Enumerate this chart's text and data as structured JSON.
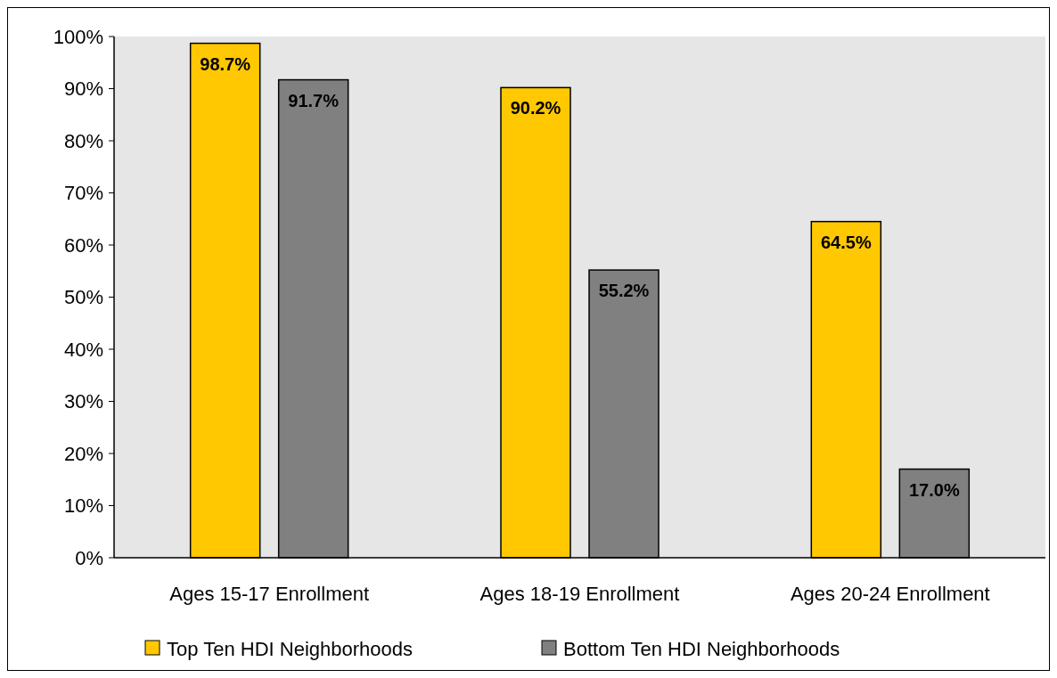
{
  "chart_data": {
    "type": "bar",
    "categories": [
      "Ages 15-17 Enrollment",
      "Ages 18-19 Enrollment",
      "Ages 20-24 Enrollment"
    ],
    "series": [
      {
        "name": "Top Ten HDI Neighborhoods",
        "color": "#ffc800",
        "values": [
          98.7,
          90.2,
          64.5
        ],
        "value_labels": [
          "98.7%",
          "90.2%",
          "64.5%"
        ]
      },
      {
        "name": "Bottom Ten HDI Neighborhoods",
        "color": "#808080",
        "values": [
          91.7,
          55.2,
          17.0
        ],
        "value_labels": [
          "91.7%",
          "55.2%",
          "17.0%"
        ]
      }
    ],
    "ylim": [
      0,
      100
    ],
    "yticks": [
      {
        "value": 0,
        "label": "0%"
      },
      {
        "value": 10,
        "label": "10%"
      },
      {
        "value": 20,
        "label": "20%"
      },
      {
        "value": 30,
        "label": "30%"
      },
      {
        "value": 40,
        "label": "40%"
      },
      {
        "value": 50,
        "label": "50%"
      },
      {
        "value": 60,
        "label": "60%"
      },
      {
        "value": 70,
        "label": "70%"
      },
      {
        "value": 80,
        "label": "80%"
      },
      {
        "value": 90,
        "label": "90%"
      },
      {
        "value": 100,
        "label": "100%"
      }
    ],
    "grid": false,
    "legend": "bottom"
  }
}
